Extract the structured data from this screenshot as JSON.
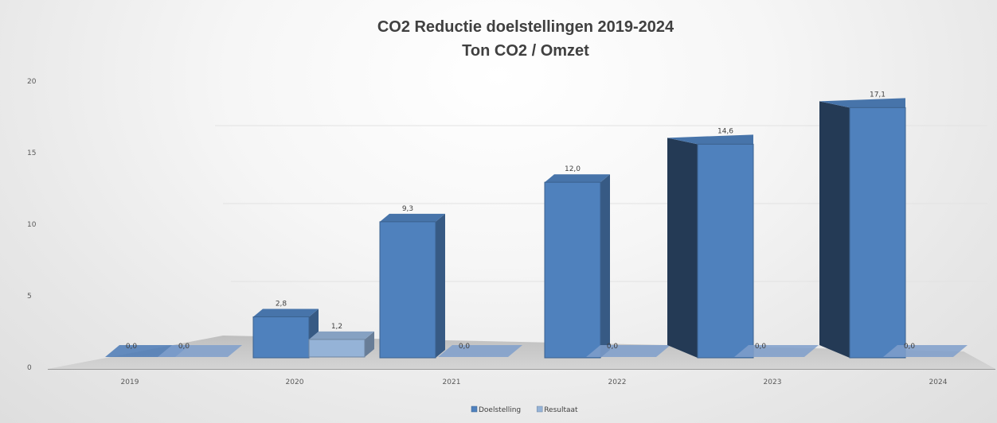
{
  "chart_data": {
    "type": "bar",
    "title": "CO2  Reductie doelstellingen 2019-2024",
    "subtitle": "Ton CO2 / Omzet",
    "categories": [
      "2019",
      "2020",
      "2021",
      "2022",
      "2023",
      "2024"
    ],
    "series": [
      {
        "name": "Doelstelling",
        "values": [
          0.0,
          2.8,
          9.3,
          12.0,
          14.6,
          17.1
        ],
        "labels": [
          "0,0",
          "2,8",
          "9,3",
          "12,0",
          "14,6",
          "17,1"
        ],
        "color": "#4f81bd"
      },
      {
        "name": "Resultaat",
        "values": [
          0.0,
          1.2,
          0.0,
          0.0,
          0.0,
          0.0
        ],
        "labels": [
          "0,0",
          "1,2",
          "0,0",
          "0,0",
          "0,0",
          "0,0"
        ],
        "color": "#95b3d7"
      }
    ],
    "yticks": [
      "0",
      "5",
      "10",
      "15",
      "20"
    ],
    "ylim": [
      0,
      20
    ],
    "xlabel": "",
    "ylabel": "",
    "grid": true,
    "legend": "bottom",
    "bar_style": "3d"
  }
}
